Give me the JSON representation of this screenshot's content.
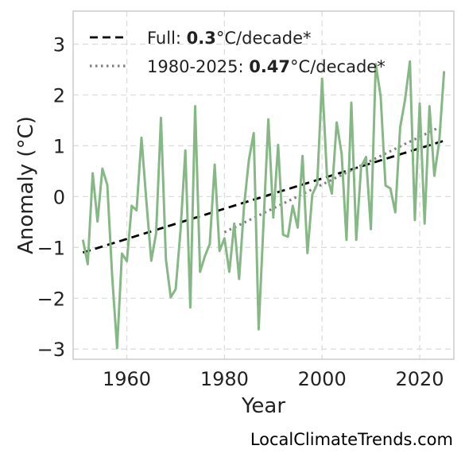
{
  "chart_data": {
    "type": "line",
    "title": "",
    "xlabel": "Year",
    "ylabel": "Anomaly (°C)",
    "xlim": [
      1949,
      2027
    ],
    "ylim": [
      -3.2,
      3.65
    ],
    "x_ticks": [
      1960,
      1980,
      2000,
      2020
    ],
    "x_tick_labels": [
      "1960",
      "1980",
      "2000",
      "2020"
    ],
    "y_ticks": [
      -3,
      -2,
      -1,
      0,
      1,
      2,
      3
    ],
    "y_tick_labels": [
      "−3",
      "−2",
      "−1",
      "0",
      "1",
      "2",
      "3"
    ],
    "grid": true,
    "legend_position": "top-left",
    "colors": {
      "series": "#86b886",
      "trend_full": "#000000",
      "trend_recent": "#808080",
      "grid": "#dddddd",
      "frame": "#cccccc"
    },
    "x": [
      1951,
      1952,
      1953,
      1954,
      1955,
      1956,
      1957,
      1958,
      1959,
      1960,
      1961,
      1962,
      1963,
      1964,
      1965,
      1966,
      1967,
      1968,
      1969,
      1970,
      1971,
      1972,
      1973,
      1974,
      1975,
      1976,
      1977,
      1978,
      1979,
      1980,
      1981,
      1982,
      1983,
      1984,
      1985,
      1986,
      1987,
      1988,
      1989,
      1990,
      1991,
      1992,
      1993,
      1994,
      1995,
      1996,
      1997,
      1998,
      1999,
      2000,
      2001,
      2002,
      2003,
      2004,
      2005,
      2006,
      2007,
      2008,
      2009,
      2010,
      2011,
      2012,
      2013,
      2014,
      2015,
      2016,
      2017,
      2018,
      2019,
      2020,
      2021,
      2022,
      2023,
      2024,
      2025
    ],
    "series": [
      {
        "values": [
          -0.85,
          -1.33,
          0.46,
          -0.49,
          0.55,
          0.23,
          -1.56,
          -2.98,
          -1.12,
          -1.27,
          -0.18,
          -0.27,
          1.16,
          -0.08,
          -1.26,
          -0.72,
          1.55,
          -1.23,
          -1.98,
          -1.82,
          -0.67,
          0.91,
          -2.18,
          1.78,
          -1.48,
          -1.17,
          -0.93,
          0.63,
          -1.07,
          -0.82,
          -1.48,
          -0.53,
          -1.62,
          -0.21,
          0.72,
          1.25,
          -2.61,
          -0.53,
          1.52,
          -0.41,
          1.02,
          -0.75,
          -0.79,
          -0.18,
          -0.61,
          0.8,
          -1.11,
          0.04,
          0.25,
          2.32,
          0.42,
          0.06,
          1.46,
          0.84,
          -0.85,
          1.85,
          -0.85,
          0.59,
          0.78,
          -0.64,
          2.61,
          1.97,
          0.22,
          0.16,
          -0.31,
          1.36,
          1.91,
          2.66,
          -0.46,
          1.83,
          -0.53,
          1.78,
          0.41,
          1.09,
          2.47
        ]
      }
    ],
    "trend_lines": [
      {
        "label_prefix": "Full: ",
        "label_value": "0.3",
        "label_suffix": "°C/decade*",
        "slope_per_decade": 0.3,
        "x_range": [
          1951,
          2025
        ],
        "y_range": [
          -1.1,
          1.1
        ],
        "style": "dashed"
      },
      {
        "label_prefix": "1980-2025: ",
        "label_value": "0.47",
        "label_suffix": "°C/decade*",
        "slope_per_decade": 0.47,
        "x_range": [
          1980,
          2025
        ],
        "y_range": [
          -0.7,
          1.41
        ],
        "style": "dotted"
      }
    ],
    "credit": "LocalClimateTrends.com"
  }
}
